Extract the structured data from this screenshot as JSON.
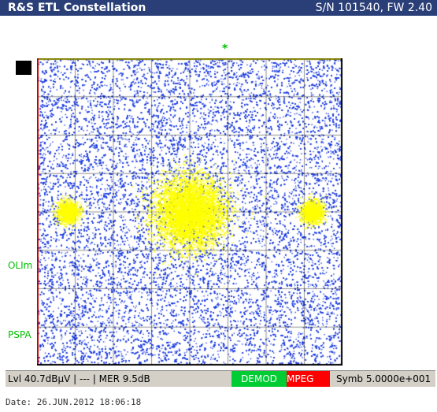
{
  "header": {
    "title": "R&S ETL Constellation",
    "serial": "S/N 101540, FW 2.40"
  },
  "marker_symbol": "*",
  "side_labels": {
    "olim": "OLIm",
    "pspa": "PSPA"
  },
  "status": {
    "level_mer": "Lvl 40.7dBµV | --- | MER 9.5dB",
    "demod": "DEMOD",
    "mpeg": "MPEG",
    "symbol_rate": "Symb 5.0000e+001"
  },
  "footer": {
    "date": "Date: 26.JUN.2012  18:06:18"
  },
  "colors": {
    "noise": "#1f3fe0",
    "cluster": "#ffff00",
    "grid": "#000000",
    "frame_left": "#c00000",
    "frame_top": "#808000",
    "demod_ok": "#00cc33",
    "mpeg_fail": "#ff0000"
  },
  "plot": {
    "grid_divisions": 8
  }
}
